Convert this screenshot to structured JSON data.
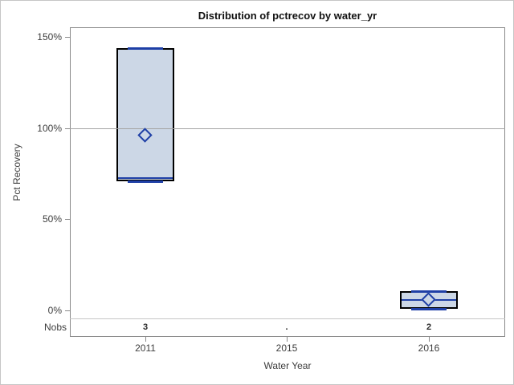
{
  "title": "Distribution of pctrecov by water_yr",
  "y_axis": {
    "label": "Pct Recovery",
    "ticks": [
      {
        "label": "150%",
        "value": 150
      },
      {
        "label": "100%",
        "value": 100
      },
      {
        "label": "50%",
        "value": 50
      },
      {
        "label": "0%",
        "value": 0
      }
    ]
  },
  "x_axis": {
    "label": "Water Year",
    "categories": [
      "2011",
      "2015",
      "2016"
    ]
  },
  "nobs": {
    "label": "Nobs",
    "values": [
      "3",
      ".",
      "2"
    ]
  },
  "reference_line": {
    "value": 100
  },
  "colors": {
    "box_fill": "#ccd7e6",
    "box_border": "#000000",
    "blue_line": "#1e3fa6",
    "axis_gray": "#8a8a8a",
    "refline_gray": "#a4a4a4"
  },
  "chart_data": {
    "type": "boxplot",
    "title": "Distribution of pctrecov by water_yr",
    "xlabel": "Water Year",
    "ylabel": "Pct Recovery",
    "ylim": [
      -15,
      155
    ],
    "yticks": [
      0,
      50,
      100,
      150
    ],
    "ytick_format": "percent",
    "categories": [
      "2011",
      "2015",
      "2016"
    ],
    "reference_line_y": 100,
    "series": [
      {
        "category": "2011",
        "low": 71,
        "q1": 71,
        "median": 72.5,
        "q3": 144,
        "high": 144,
        "mean": 96,
        "n": 3
      },
      {
        "category": "2015",
        "low": null,
        "q1": null,
        "median": null,
        "q3": null,
        "high": null,
        "mean": null,
        "n": null
      },
      {
        "category": "2016",
        "low": 1,
        "q1": 1,
        "median": 5.8,
        "q3": 10.5,
        "high": 10.5,
        "mean": 5.8,
        "n": 2
      }
    ],
    "nobs_row": [
      "3",
      ".",
      "2"
    ]
  }
}
